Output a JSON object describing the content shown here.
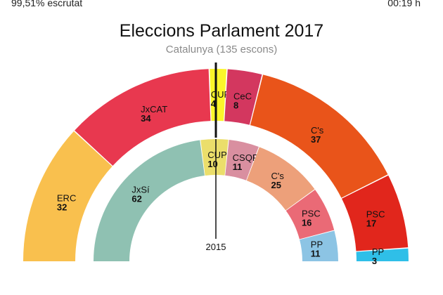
{
  "header": {
    "scrutiny": "99,51% escrutat",
    "time": "00:19 h"
  },
  "chart_data": {
    "type": "parliament-semicircle",
    "title": "Eleccions Parlament 2017",
    "subtitle": "Catalunya (135 escons)",
    "total_seats": 135,
    "majority_marker": 68,
    "series": [
      {
        "name": "2017",
        "ring": "outer",
        "parties": [
          {
            "party": "ERC",
            "seats": 32,
            "color": "#f9c04e"
          },
          {
            "party": "JxCAT",
            "seats": 34,
            "color": "#e8384f"
          },
          {
            "party": "CUP",
            "seats": 4,
            "color": "#fbf52a"
          },
          {
            "party": "CeC",
            "seats": 8,
            "color": "#d3375f"
          },
          {
            "party": "C's",
            "seats": 37,
            "color": "#e9541a"
          },
          {
            "party": "PSC",
            "seats": 17,
            "color": "#e1261c"
          },
          {
            "party": "PP",
            "seats": 3,
            "color": "#2fbfe8"
          }
        ]
      },
      {
        "name": "2015",
        "ring": "inner",
        "center_label": "2015",
        "parties": [
          {
            "party": "JxSí",
            "seats": 62,
            "color": "#8fc1b2"
          },
          {
            "party": "CUP",
            "seats": 10,
            "color": "#ebde6b"
          },
          {
            "party": "CSQP",
            "seats": 11,
            "color": "#d98fa0"
          },
          {
            "party": "C's",
            "seats": 25,
            "color": "#eda07a"
          },
          {
            "party": "PSC",
            "seats": 16,
            "color": "#ea6a76"
          },
          {
            "party": "PP",
            "seats": 11,
            "color": "#8cc4e4"
          }
        ]
      }
    ]
  }
}
